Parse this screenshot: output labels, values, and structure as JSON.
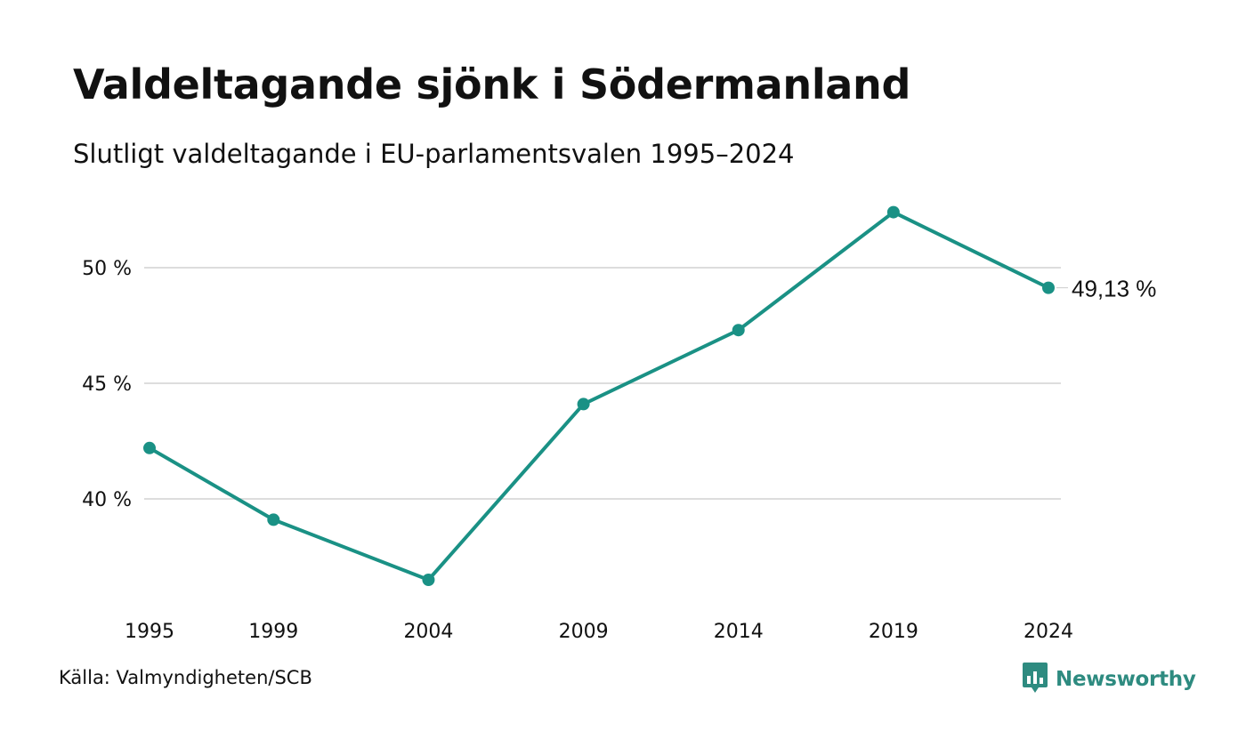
{
  "chart_data": {
    "type": "line",
    "title": "Valdeltagande sjönk i Södermanland",
    "subtitle": "Slutligt valdeltagande i EU-parlamentsvalen 1995–2024",
    "x": [
      1995,
      1999,
      2004,
      2009,
      2014,
      2019,
      2024
    ],
    "x_tick_labels": [
      "1995",
      "1999",
      "2004",
      "2009",
      "2014",
      "2019",
      "2024"
    ],
    "series": [
      {
        "values": [
          42.2,
          39.1,
          36.5,
          44.1,
          47.3,
          52.4,
          49.13
        ],
        "color": "#1a9185"
      }
    ],
    "ylim": [
      35,
      52.5
    ],
    "y_ticks": [
      40,
      45,
      50
    ],
    "y_tick_labels": [
      "40 %",
      "45 %",
      "50 %"
    ],
    "end_label": "49,13 %",
    "grid": "horizontal",
    "gridline_color": "#dddddd",
    "xlabel": "",
    "ylabel": ""
  },
  "footer": {
    "source": "Källa: Valmyndigheten/SCB",
    "brand": "Newsworthy",
    "brand_icon": "bar-chart-speech-bubble-icon",
    "brand_color": "#2e8b80"
  }
}
